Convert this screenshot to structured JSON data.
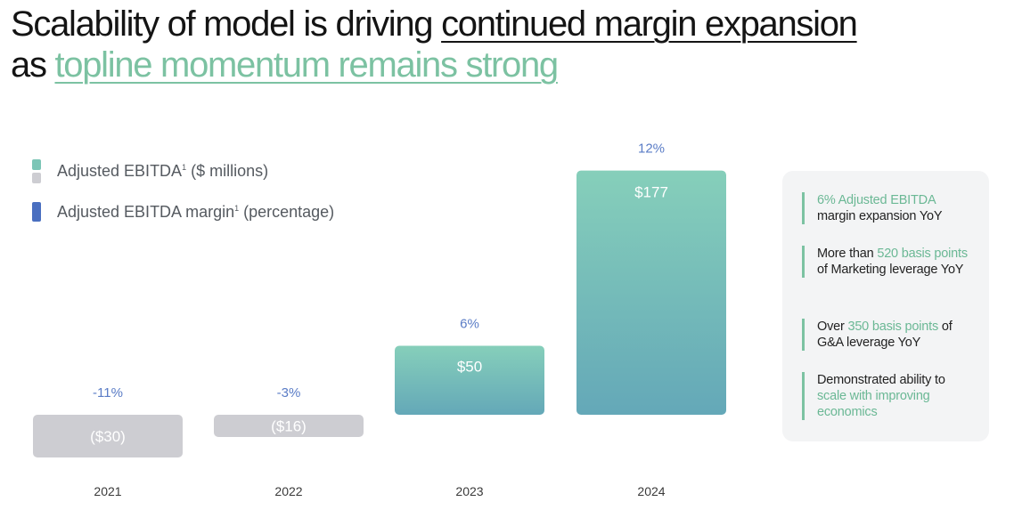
{
  "headline": {
    "line1_plain": "Scalability of model is driving ",
    "line1_emphasis": "continued margin expansion",
    "line2_plain": "as ",
    "line2_emphasis": "topline momentum remains strong"
  },
  "legend": {
    "ebitda_label": "Adjusted EBITDA",
    "ebitda_footnote": "1",
    "ebitda_unit": " ($ millions)",
    "margin_label": "Adjusted EBITDA margin",
    "margin_footnote": "1",
    "margin_unit": " (percentage)"
  },
  "colors": {
    "positive_top": "#86cfba",
    "positive_bottom": "#64a8b8",
    "negative": "#cdcdd2",
    "margin": "#4a6fc0",
    "accent_green": "#7cc2a2"
  },
  "chart_data": {
    "type": "bar",
    "categories": [
      "2021",
      "2022",
      "2023",
      "2024"
    ],
    "series": [
      {
        "name": "Adjusted EBITDA",
        "values": [
          -30,
          -16,
          50,
          177
        ],
        "labels": [
          "($30)",
          "($16)",
          "$50",
          "$177"
        ]
      },
      {
        "name": "Adjusted EBITDA margin",
        "values": [
          -11,
          -3,
          6,
          12
        ],
        "labels": [
          "-11%",
          "-3%",
          "6%",
          "12%"
        ]
      }
    ],
    "ylabel": "$ millions"
  },
  "callouts": [
    {
      "highlight": "6% Adjusted EBITDA",
      "text": "margin expansion YoY"
    },
    {
      "pre": "More than ",
      "highlight": "520 basis points",
      "text": " of Marketing leverage YoY"
    },
    {
      "pre": "Over ",
      "highlight": "350 basis points",
      "text": " of G&A leverage YoY"
    },
    {
      "pre": "Demonstrated ability to ",
      "highlight": "scale with improving economics",
      "text": ""
    }
  ]
}
